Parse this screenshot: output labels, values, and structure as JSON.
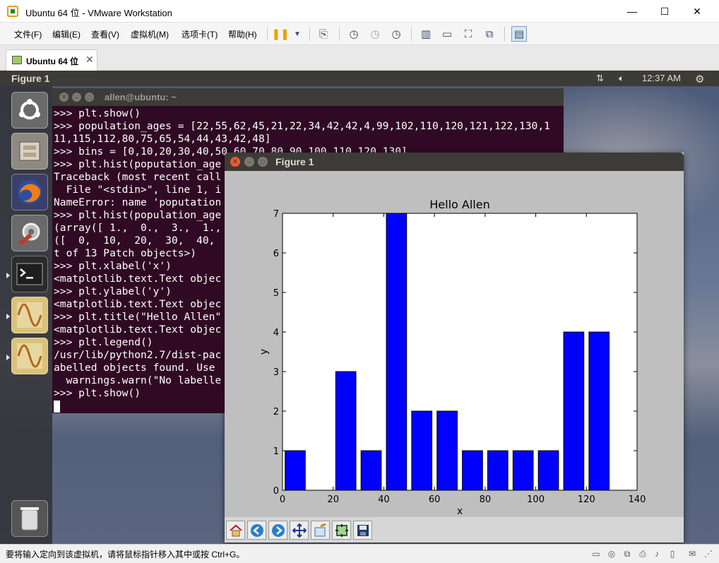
{
  "window": {
    "title": "Ubuntu 64 位 - VMware Workstation",
    "controls": {
      "minimize": "—",
      "maximize": "☐",
      "close": "✕"
    }
  },
  "menubar": {
    "items": [
      "文件(F)",
      "编辑(E)",
      "查看(V)",
      "虚拟机(M)",
      "选项卡(T)",
      "帮助(H)"
    ]
  },
  "tabs": [
    {
      "label": "Ubuntu 64 位",
      "close": "✕"
    }
  ],
  "ubuntu_panel": {
    "title": "Figure 1",
    "time": "12:37 AM"
  },
  "terminal": {
    "title": "allen@ubuntu: ~",
    "lines": [
      ">>> plt.show()",
      ">>> population_ages = [22,55,62,45,21,22,34,42,42,4,99,102,110,120,121,122,130,1",
      "11,115,112,80,75,65,54,44,43,42,48]",
      ">>> bins = [0,10,20,30,40,50,60,70,80,90,100,110,120,130]",
      ">>> plt.hist(poputation_age",
      "Traceback (most recent call",
      "  File \"<stdin>\", line 1, i",
      "NameError: name 'poputation",
      ">>> plt.hist(population_age",
      "(array([ 1.,  0.,  3.,  1.,",
      "([  0,  10,  20,  30,  40,",
      "t of 13 Patch objects>)",
      ">>> plt.xlabel('x')",
      "<matplotlib.text.Text objec",
      ">>> plt.ylabel('y')",
      "<matplotlib.text.Text objec",
      ">>> plt.title(\"Hello Allen\"",
      "<matplotlib.text.Text objec",
      ">>> plt.legend()",
      "/usr/lib/python2.7/dist-pac",
      "abelled objects found. Use",
      "  warnings.warn(\"No labelle",
      ">>> plt.show()"
    ]
  },
  "figure_window": {
    "title": "Figure 1"
  },
  "chart_data": {
    "type": "bar",
    "title": "Hello Allen",
    "xlabel": "x",
    "ylabel": "y",
    "xlim": [
      0,
      140
    ],
    "ylim": [
      0,
      7
    ],
    "xticks": [
      0,
      20,
      40,
      60,
      80,
      100,
      120,
      140
    ],
    "yticks": [
      0,
      1,
      2,
      3,
      4,
      5,
      6,
      7
    ],
    "bin_edges": [
      0,
      10,
      20,
      30,
      40,
      50,
      60,
      70,
      80,
      90,
      100,
      110,
      120,
      130
    ],
    "values": [
      1,
      0,
      3,
      1,
      7,
      2,
      2,
      1,
      1,
      1,
      1,
      4,
      4
    ],
    "bar_color": "#0000ff",
    "grid": false
  },
  "statusbar": {
    "text": "要将输入定向到该虚拟机，请将鼠标指针移入其中或按 Ctrl+G。"
  },
  "colors": {
    "terminal_bg": "#300a24",
    "ubuntu_panel": "#3c3b37",
    "bar": "#0000ff",
    "close_orange": "#ef5a2c"
  }
}
